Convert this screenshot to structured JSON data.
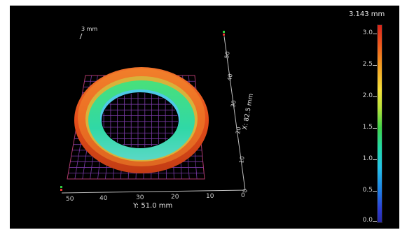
{
  "scale_bar": {
    "label": "3 mm"
  },
  "colorbar": {
    "max_label": "3.143 mm",
    "ticks": [
      "3.0",
      "2.5",
      "2.0",
      "1.5",
      "1.0",
      "0.5",
      "0.0"
    ],
    "colors": [
      "#d9261c",
      "#f5e13a",
      "#40d34a",
      "#22d9a5",
      "#24c4e8",
      "#1f7fe6",
      "#2a2aa8"
    ]
  },
  "x_axis": {
    "title": "X: 82.5 mm",
    "ticks": [
      "0",
      "10",
      "20",
      "30",
      "40",
      "50"
    ]
  },
  "y_axis": {
    "title": "Y: 51.0 mm",
    "ticks": [
      "0",
      "10",
      "20",
      "30",
      "40",
      "50"
    ]
  },
  "colors": {
    "background": "#000000",
    "grid": "#7a3aa6",
    "ring_outer": "#e0521c",
    "ring_inner": "#33d8a0",
    "axis": "#bfbfbf"
  }
}
